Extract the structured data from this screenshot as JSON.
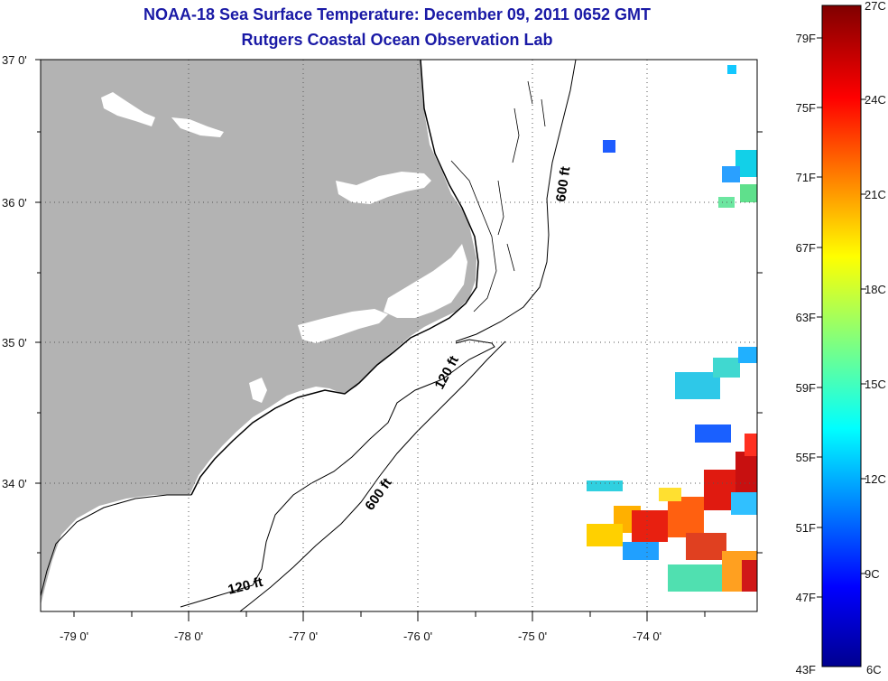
{
  "title": {
    "line1": "NOAA-18 Sea Surface Temperature:  December 09, 2011 0652 GMT",
    "line2": "Rutgers Coastal Ocean Observation Lab"
  },
  "map": {
    "lon_labels": [
      "-79 0'",
      "-78 0'",
      "-77 0'",
      "-76 0'",
      "-75 0'",
      "-74 0'"
    ],
    "lat_labels": [
      "37 0'",
      "36 0'",
      "35 0'",
      "34 0'"
    ],
    "contour_labels": [
      "600 ft",
      "120 ft",
      "600 ft",
      "120 ft"
    ],
    "land_color": "#b3b3b3",
    "grid": "dotted"
  },
  "colorbar": {
    "fahrenheit_labels": [
      "79F",
      "75F",
      "71F",
      "67F",
      "63F",
      "59F",
      "55F",
      "51F",
      "47F",
      "43F"
    ],
    "celsius_labels": [
      "27C",
      "24C",
      "21C",
      "18C",
      "15C",
      "12C",
      "9C",
      "6C"
    ],
    "colormap": "jet",
    "colors": [
      "#00008f",
      "#0000ff",
      "#00ffff",
      "#ffff00",
      "#ff0000",
      "#800000"
    ]
  }
}
